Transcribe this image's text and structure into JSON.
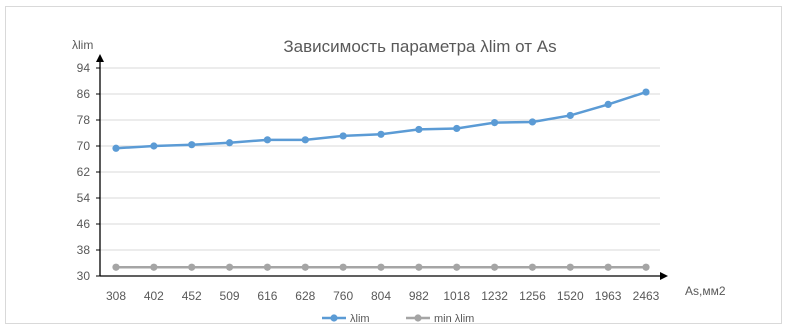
{
  "chart_data": {
    "type": "line",
    "title": "Зависимость параметра λlim от As",
    "ylabel": "λlim",
    "xlabel": "As,мм2",
    "categories": [
      "308",
      "402",
      "452",
      "509",
      "616",
      "628",
      "760",
      "804",
      "982",
      "1018",
      "1232",
      "1256",
      "1520",
      "1963",
      "2463"
    ],
    "ylim": [
      30,
      94
    ],
    "yticks": [
      30,
      38,
      46,
      54,
      62,
      70,
      78,
      86,
      94
    ],
    "grid": true,
    "legend_position": "bottom",
    "series": [
      {
        "name": "λlim",
        "color": "#5b9bd5",
        "values": [
          69.3,
          70.0,
          70.4,
          71.0,
          71.9,
          71.9,
          73.1,
          73.6,
          75.1,
          75.4,
          77.2,
          77.4,
          79.4,
          82.8,
          86.6
        ]
      },
      {
        "name": "min λlim",
        "color": "#a5a5a5",
        "values": [
          32.7,
          32.7,
          32.7,
          32.7,
          32.7,
          32.7,
          32.7,
          32.7,
          32.7,
          32.7,
          32.7,
          32.7,
          32.7,
          32.7,
          32.7
        ]
      }
    ]
  }
}
